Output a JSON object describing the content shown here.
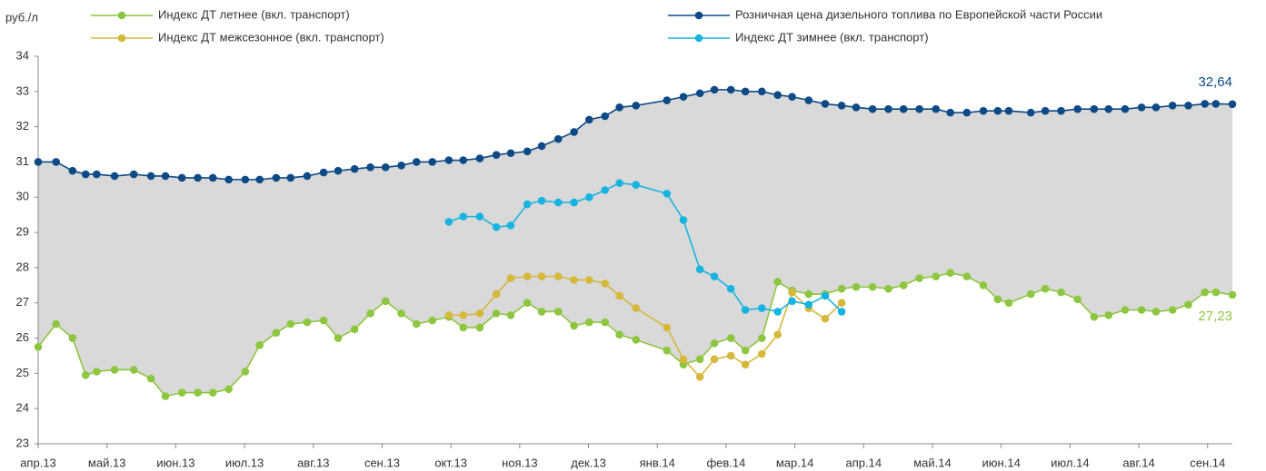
{
  "chart_data": {
    "type": "line",
    "y_label": "руб./л",
    "x": [
      0,
      0.26,
      0.5,
      0.69,
      0.85,
      1.11,
      1.39,
      1.64,
      1.85,
      2.09,
      2.32,
      2.54,
      2.77,
      3.01,
      3.22,
      3.46,
      3.67,
      3.91,
      4.15,
      4.36,
      4.6,
      4.83,
      5.05,
      5.28,
      5.5,
      5.73,
      5.97,
      6.18,
      6.42,
      6.66,
      6.87,
      7.11,
      7.32,
      7.56,
      7.79,
      8.01,
      8.24,
      8.45,
      8.69,
      9.14,
      9.38,
      9.62,
      9.83,
      10.07,
      10.28,
      10.52,
      10.75,
      10.96,
      11.2,
      11.44,
      11.68,
      11.89,
      12.13,
      12.36,
      12.58,
      12.81,
      13.05,
      13.26,
      13.5,
      13.74,
      13.95,
      14.11,
      14.43,
      14.64,
      14.87,
      15.11,
      15.35,
      15.56,
      15.8,
      16.04,
      16.25,
      16.49,
      16.72,
      16.96,
      17.12,
      17.36
    ],
    "xlim": [
      0,
      17.36
    ],
    "xticks": [
      {
        "value": 0,
        "label": "апр.13"
      },
      {
        "value": 1,
        "label": "май.13"
      },
      {
        "value": 2,
        "label": "июн.13"
      },
      {
        "value": 3,
        "label": "июл.13"
      },
      {
        "value": 4,
        "label": "авг.13"
      },
      {
        "value": 5,
        "label": "сен.13"
      },
      {
        "value": 6,
        "label": "окт.13"
      },
      {
        "value": 7,
        "label": "ноя.13"
      },
      {
        "value": 8,
        "label": "дек.13"
      },
      {
        "value": 9,
        "label": "янв.14"
      },
      {
        "value": 10,
        "label": "фев.14"
      },
      {
        "value": 11,
        "label": "мар.14"
      },
      {
        "value": 12,
        "label": "апр.14"
      },
      {
        "value": 13,
        "label": "май.14"
      },
      {
        "value": 14,
        "label": "июн.14"
      },
      {
        "value": 15,
        "label": "июл.14"
      },
      {
        "value": 16,
        "label": "авг.14"
      },
      {
        "value": 17,
        "label": "сен.14"
      }
    ],
    "ylim": [
      23,
      34
    ],
    "yticks": [
      23,
      24,
      25,
      26,
      27,
      28,
      29,
      30,
      31,
      32,
      33,
      34
    ],
    "grid": false,
    "spread_fill": "#d9d9d9",
    "series": [
      {
        "name": "Индекс ДТ летнее (вкл. транспорт)",
        "color": "#8dc63f",
        "values": [
          25.75,
          26.4,
          26.0,
          24.95,
          25.05,
          25.1,
          25.1,
          24.85,
          24.35,
          24.45,
          24.45,
          24.45,
          24.55,
          25.05,
          25.8,
          26.15,
          26.4,
          26.45,
          26.5,
          26.0,
          26.25,
          26.7,
          27.05,
          26.7,
          26.4,
          26.5,
          26.6,
          26.3,
          26.3,
          26.7,
          26.65,
          27.0,
          26.75,
          26.75,
          26.35,
          26.45,
          26.45,
          26.1,
          25.95,
          25.65,
          25.25,
          25.4,
          25.85,
          26.0,
          25.65,
          26.0,
          27.6,
          27.35,
          27.25,
          27.25,
          27.4,
          27.45,
          27.45,
          27.4,
          27.5,
          27.7,
          27.75,
          27.85,
          27.75,
          27.5,
          27.1,
          27.0,
          27.25,
          27.4,
          27.3,
          27.1,
          26.6,
          26.65,
          26.8,
          26.8,
          26.75,
          26.8,
          26.95,
          27.3,
          27.3,
          27.23
        ],
        "value_labels": [
          null,
          null,
          null,
          null,
          null,
          null,
          null,
          null,
          null,
          null,
          null,
          null,
          null,
          null,
          null,
          null,
          null,
          null,
          null,
          null,
          null,
          null,
          null,
          null,
          null,
          null,
          null,
          null,
          null,
          null,
          null,
          null,
          null,
          null,
          null,
          null,
          null,
          null,
          null,
          null,
          null,
          null,
          null,
          null,
          null,
          null,
          null,
          null,
          null,
          null,
          null,
          null,
          null,
          null,
          null,
          null,
          null,
          null,
          null,
          null,
          null,
          null,
          null,
          null,
          null,
          null,
          null,
          null,
          null,
          null,
          null,
          null,
          null,
          null,
          null,
          "27,23"
        ]
      },
      {
        "name": "Индекс ДТ межсезонное (вкл. транспорт)",
        "color": "#d6b83a",
        "values": [
          null,
          null,
          null,
          null,
          null,
          null,
          null,
          null,
          null,
          null,
          null,
          null,
          null,
          null,
          null,
          null,
          null,
          null,
          null,
          null,
          null,
          null,
          null,
          null,
          null,
          null,
          26.65,
          26.65,
          26.7,
          27.25,
          27.7,
          27.75,
          27.75,
          27.75,
          27.65,
          27.65,
          27.55,
          27.2,
          26.85,
          26.3,
          25.4,
          24.9,
          25.4,
          25.5,
          25.25,
          25.55,
          26.1,
          27.3,
          26.85,
          26.55,
          27.0,
          null,
          null,
          null,
          null,
          null,
          null,
          null,
          null,
          null,
          null,
          null,
          null,
          null,
          null,
          null,
          null,
          null,
          null,
          null,
          null,
          null,
          null,
          null,
          null,
          null
        ]
      },
      {
        "name": "Розничная цена дизельного топлива по Европейской части России",
        "color": "#0d4a86",
        "values": [
          31.0,
          31.0,
          30.75,
          30.65,
          30.65,
          30.6,
          30.65,
          30.6,
          30.6,
          30.55,
          30.55,
          30.55,
          30.5,
          30.5,
          30.5,
          30.55,
          30.55,
          30.6,
          30.7,
          30.75,
          30.8,
          30.85,
          30.85,
          30.9,
          31.0,
          31.0,
          31.05,
          31.05,
          31.1,
          31.2,
          31.25,
          31.3,
          31.45,
          31.65,
          31.85,
          32.2,
          32.3,
          32.55,
          32.6,
          32.75,
          32.85,
          32.95,
          33.05,
          33.05,
          33.0,
          33.0,
          32.9,
          32.85,
          32.75,
          32.65,
          32.6,
          32.55,
          32.5,
          32.5,
          32.5,
          32.5,
          32.5,
          32.4,
          32.4,
          32.45,
          32.45,
          32.45,
          32.4,
          32.45,
          32.45,
          32.5,
          32.5,
          32.5,
          32.5,
          32.55,
          32.55,
          32.6,
          32.6,
          32.65,
          32.65,
          32.64
        ],
        "value_labels": [
          null,
          null,
          null,
          null,
          null,
          null,
          null,
          null,
          null,
          null,
          null,
          null,
          null,
          null,
          null,
          null,
          null,
          null,
          null,
          null,
          null,
          null,
          null,
          null,
          null,
          null,
          null,
          null,
          null,
          null,
          null,
          null,
          null,
          null,
          null,
          null,
          null,
          null,
          null,
          null,
          null,
          null,
          null,
          null,
          null,
          null,
          null,
          null,
          null,
          null,
          null,
          null,
          null,
          null,
          null,
          null,
          null,
          null,
          null,
          null,
          null,
          null,
          null,
          null,
          null,
          null,
          null,
          null,
          null,
          null,
          null,
          null,
          null,
          null,
          null,
          "32,64"
        ]
      },
      {
        "name": "Индекс ДТ зимнее (вкл. транспорт)",
        "color": "#18b4e1",
        "values": [
          null,
          null,
          null,
          null,
          null,
          null,
          null,
          null,
          null,
          null,
          null,
          null,
          null,
          null,
          null,
          null,
          null,
          null,
          null,
          null,
          null,
          null,
          null,
          null,
          null,
          null,
          29.3,
          29.45,
          29.45,
          29.15,
          29.2,
          29.8,
          29.9,
          29.85,
          29.85,
          30.0,
          30.2,
          30.4,
          30.35,
          30.1,
          29.35,
          27.95,
          27.75,
          27.4,
          26.8,
          26.85,
          26.75,
          27.05,
          26.95,
          27.2,
          26.75,
          null,
          null,
          null,
          null,
          null,
          null,
          null,
          null,
          null,
          null,
          null,
          null,
          null,
          null,
          null,
          null,
          null,
          null,
          null,
          null,
          null,
          null,
          null,
          null,
          null
        ]
      }
    ]
  }
}
